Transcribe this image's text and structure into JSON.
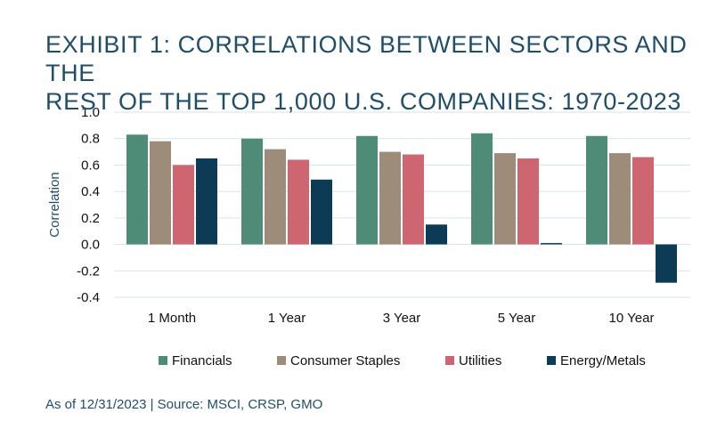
{
  "title_line1": "EXHIBIT 1: CORRELATIONS BETWEEN SECTORS AND THE",
  "title_line2": "REST OF THE TOP 1,000 U.S. COMPANIES: 1970-2023",
  "source": "As of 12/31/2023 | Source: MSCI, CRSP, GMO",
  "colors": {
    "title": "#1f4e6a",
    "grid": "#d5e3ec",
    "Financials": "#4e8c78",
    "Consumer Staples": "#9d8c79",
    "Utilities": "#cd6670",
    "Energy/Metals": "#0d3b55"
  },
  "chart_data": {
    "type": "bar",
    "title": "EXHIBIT 1: CORRELATIONS BETWEEN SECTORS AND THE REST OF THE TOP 1,000 U.S. COMPANIES: 1970-2023",
    "xlabel": "",
    "ylabel": "Correlation",
    "ylim": [
      -0.4,
      1.0
    ],
    "yticks": [
      "1.0",
      "0.8",
      "0.6",
      "0.4",
      "0.2",
      "0.0",
      "-0.2",
      "-0.4"
    ],
    "ytick_values": [
      1.0,
      0.8,
      0.6,
      0.4,
      0.2,
      0.0,
      -0.2,
      -0.4
    ],
    "grid": true,
    "legend_position": "bottom",
    "categories": [
      "1 Month",
      "1 Year",
      "3 Year",
      "5 Year",
      "10 Year"
    ],
    "series": [
      {
        "name": "Financials",
        "values": [
          0.83,
          0.8,
          0.82,
          0.84,
          0.82
        ]
      },
      {
        "name": "Consumer Staples",
        "values": [
          0.78,
          0.72,
          0.7,
          0.69,
          0.69
        ]
      },
      {
        "name": "Utilities",
        "values": [
          0.6,
          0.64,
          0.68,
          0.65,
          0.66
        ]
      },
      {
        "name": "Energy/Metals",
        "values": [
          0.65,
          0.49,
          0.15,
          0.01,
          -0.29
        ]
      }
    ]
  }
}
